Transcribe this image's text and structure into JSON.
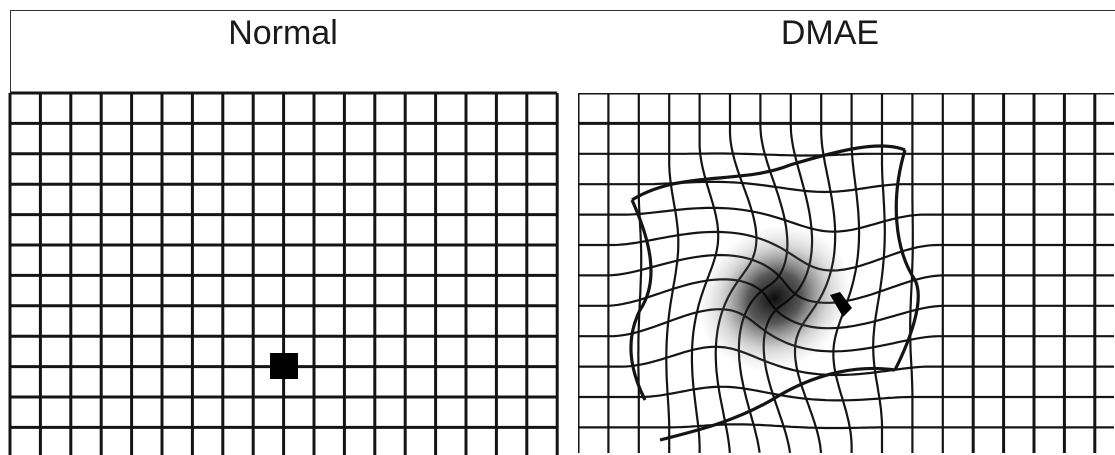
{
  "panels": [
    {
      "id": "normal",
      "title": "Normal"
    },
    {
      "id": "dmae",
      "title": "DMAE"
    }
  ],
  "colors": {
    "line": "#141414",
    "background": "#ffffff",
    "spot": "#000000"
  }
}
